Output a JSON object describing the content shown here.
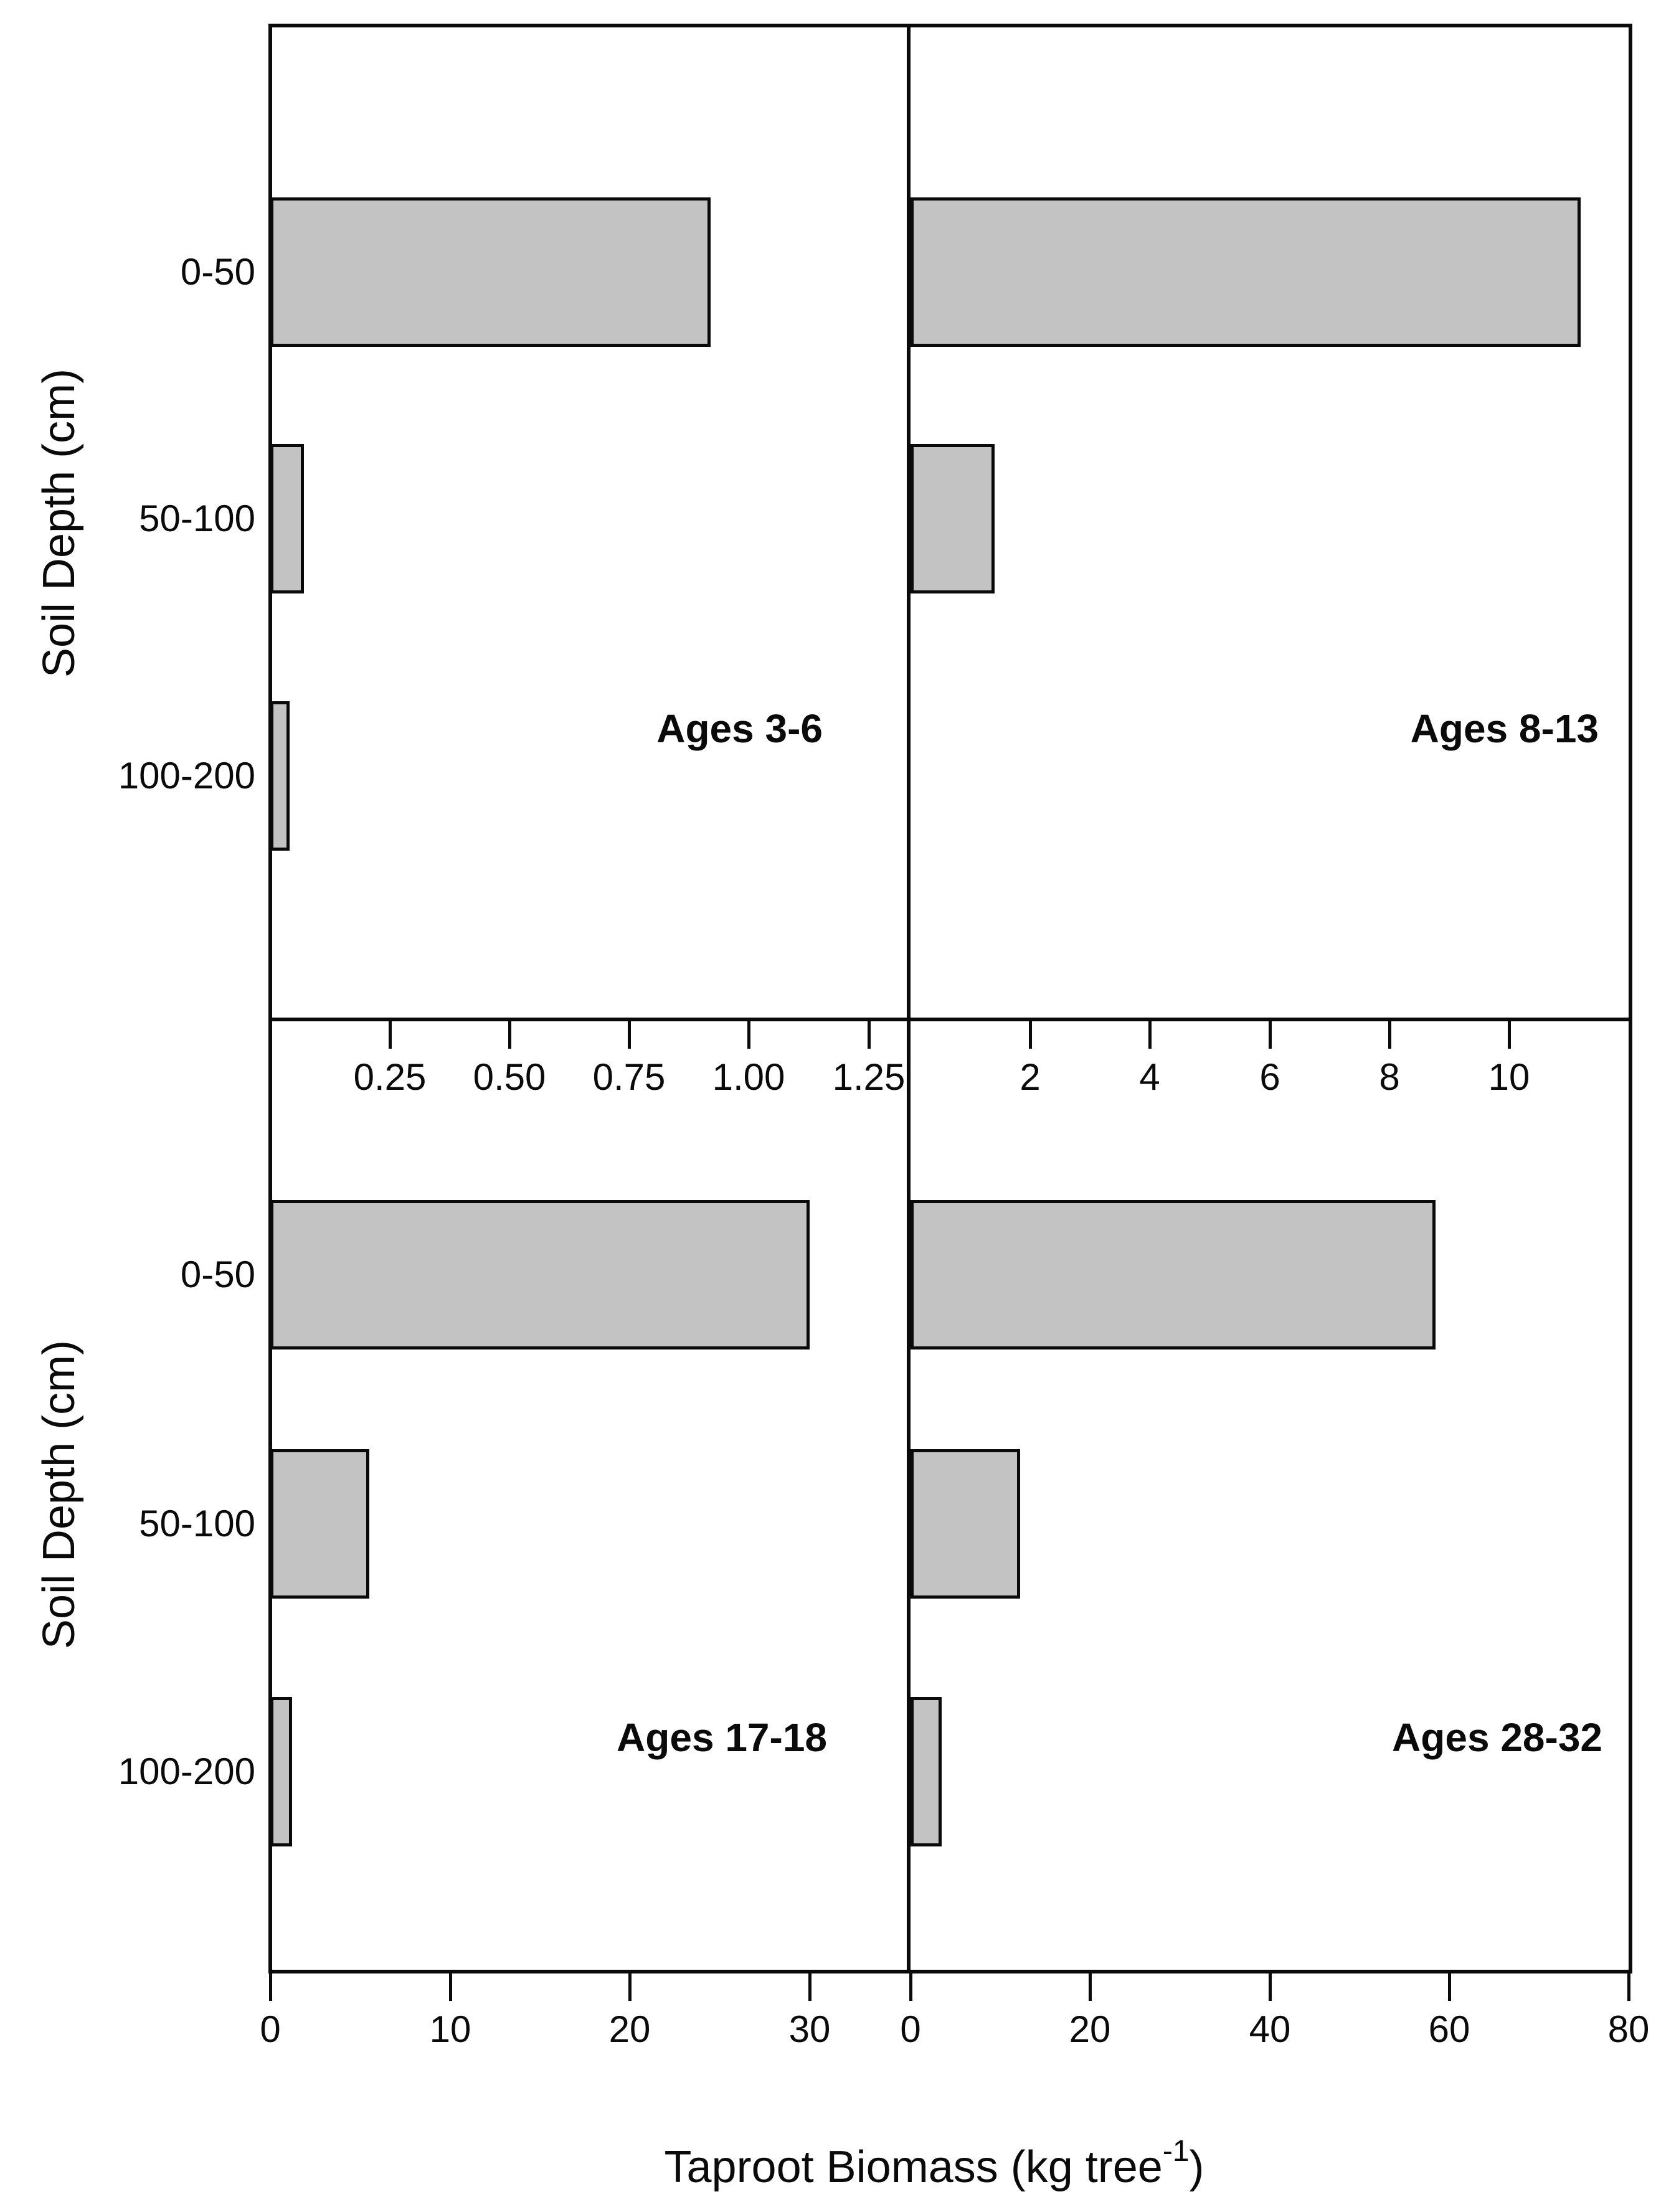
{
  "figure": {
    "x_axis_title_main": "Taproot Biomass (kg tree",
    "x_axis_title_sup": "-1",
    "x_axis_title_end": ")",
    "y_axis_title": "Soil Depth (cm)",
    "categories": [
      "0-50",
      "50-100",
      "100-200"
    ],
    "bar_fill_color": "#c3c3c3",
    "line_color": "#0a0a0a",
    "background_color": "#ffffff"
  },
  "chart_data": [
    {
      "type": "bar",
      "orientation": "horizontal",
      "title": "Ages 3-6",
      "categories": [
        "0-50",
        "50-100",
        "100-200"
      ],
      "values": [
        0.92,
        0.07,
        0.04
      ],
      "xlabel": "Taproot Biomass (kg tree^-1)",
      "ylabel": "Soil Depth (cm)",
      "xlim": [
        0,
        1.33
      ],
      "xticks": [
        0.25,
        0.5,
        0.75,
        1.0,
        1.25
      ],
      "xtick_labels": [
        "0.25",
        "0.50",
        "0.75",
        "1.00",
        "1.25"
      ],
      "grid": false,
      "legend": false
    },
    {
      "type": "bar",
      "orientation": "horizontal",
      "title": "Ages 8-13",
      "categories": [
        "0-50",
        "50-100",
        "100-200"
      ],
      "values": [
        11.2,
        1.4,
        0
      ],
      "xlabel": "Taproot Biomass (kg tree^-1)",
      "ylabel": "Soil Depth (cm)",
      "xlim": [
        0,
        12
      ],
      "xticks": [
        2,
        4,
        6,
        8,
        10
      ],
      "xtick_labels": [
        "2",
        "4",
        "6",
        "8",
        "10"
      ],
      "grid": false,
      "legend": false
    },
    {
      "type": "bar",
      "orientation": "horizontal",
      "title": "Ages 17-18",
      "categories": [
        "0-50",
        "50-100",
        "100-200"
      ],
      "values": [
        30,
        5.5,
        1.2
      ],
      "xlabel": "Taproot Biomass (kg tree^-1)",
      "ylabel": "Soil Depth (cm)",
      "xlim": [
        0,
        35.4
      ],
      "xticks": [
        0,
        10,
        20,
        30
      ],
      "xtick_labels": [
        "0",
        "10",
        "20",
        "30"
      ],
      "grid": false,
      "legend": false
    },
    {
      "type": "bar",
      "orientation": "horizontal",
      "title": "Ages 28-32",
      "categories": [
        "0-50",
        "50-100",
        "100-200"
      ],
      "values": [
        58.5,
        12.2,
        3.5
      ],
      "xlabel": "Taproot Biomass (kg tree^-1)",
      "ylabel": "Soil Depth (cm)",
      "xlim": [
        0,
        80
      ],
      "xticks": [
        0,
        20,
        40,
        60,
        80
      ],
      "xtick_labels": [
        "0",
        "20",
        "40",
        "60",
        "80"
      ],
      "grid": false,
      "legend": false
    }
  ]
}
